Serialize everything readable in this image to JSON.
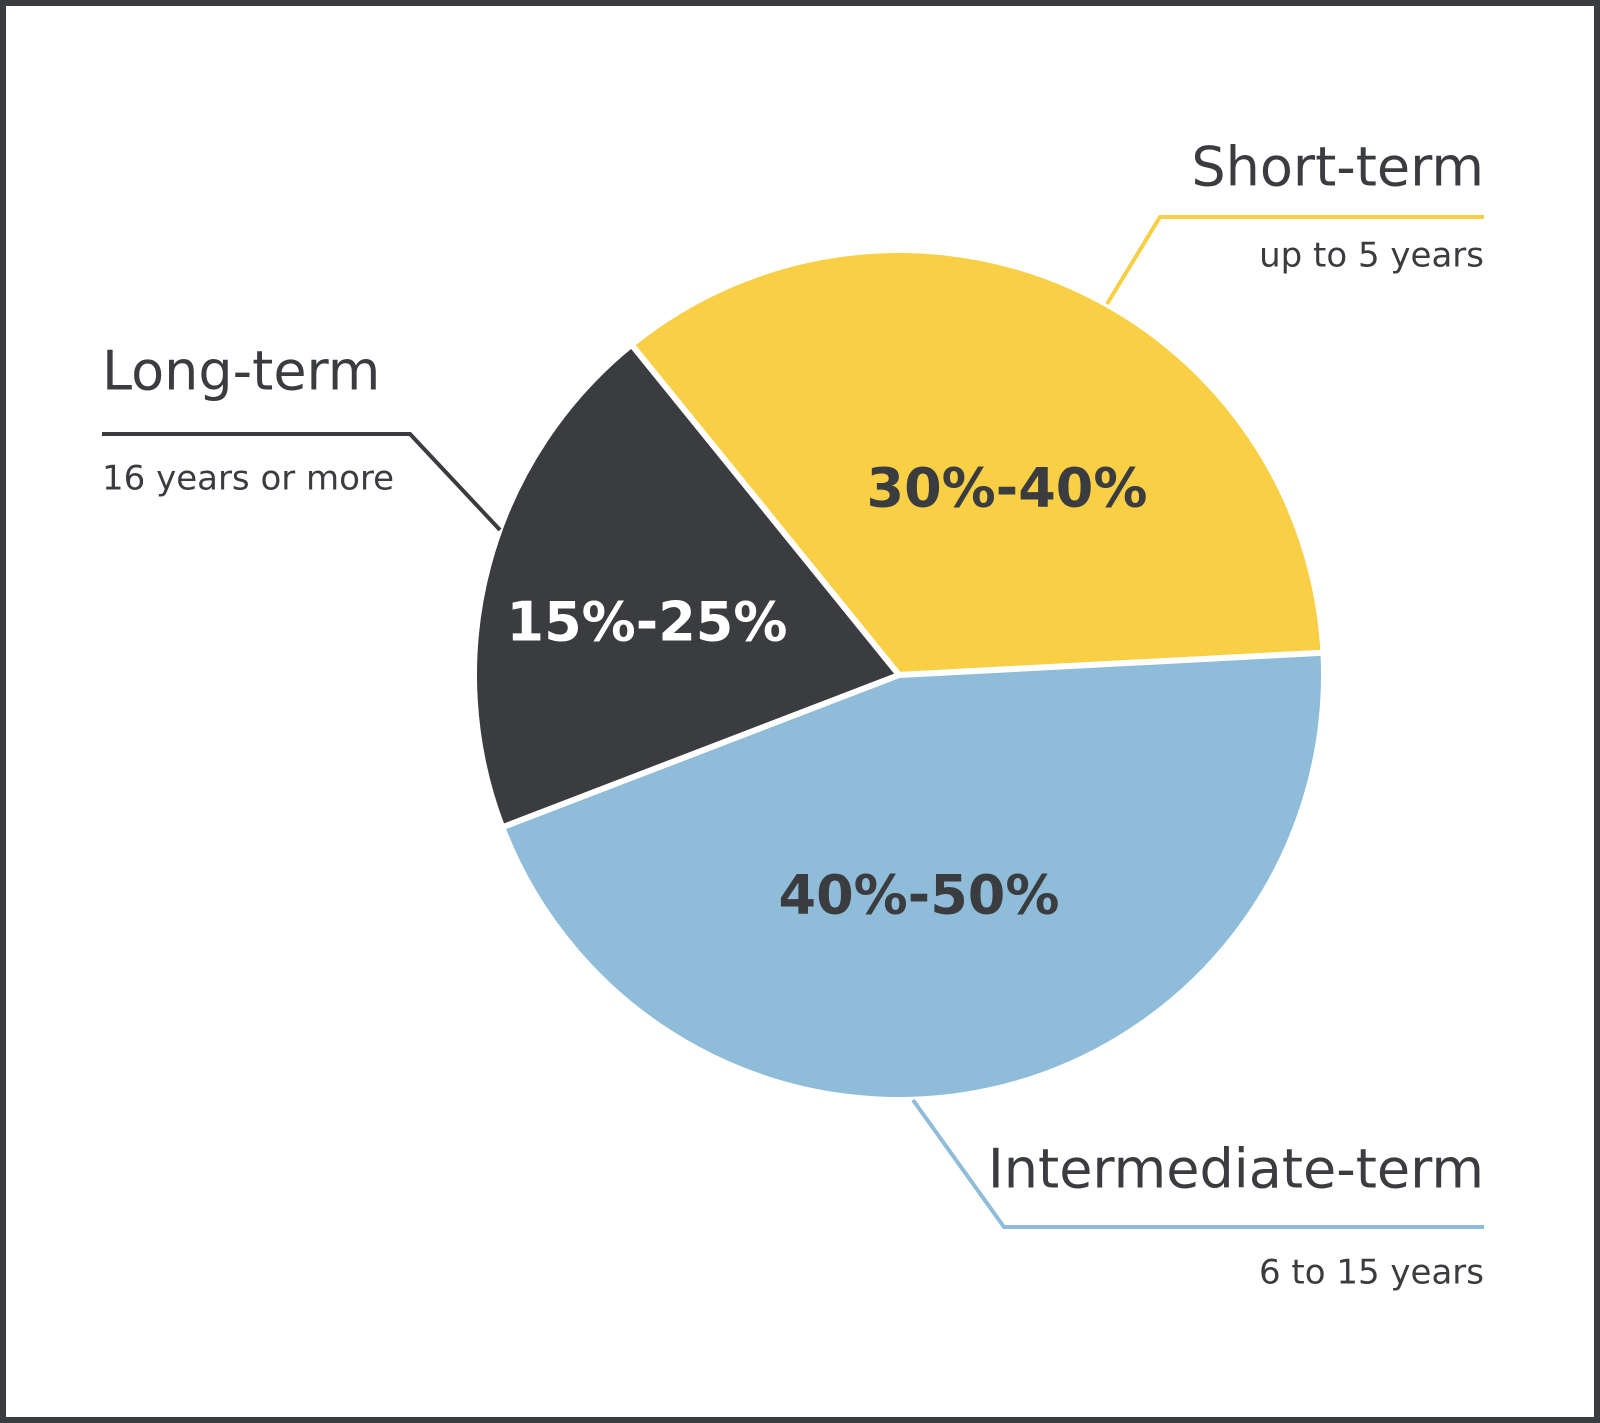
{
  "chart_data": {
    "type": "pie",
    "categories": [
      "Short-term",
      "Intermediate-term",
      "Long-term"
    ],
    "descriptions": [
      "up to 5 years",
      "6 to 15 years",
      "16 years or more"
    ],
    "values": [
      35,
      45,
      20
    ],
    "value_labels": [
      "30%-40%",
      "40%-50%",
      "15%-25%"
    ],
    "colors": [
      "#f8cf45",
      "#8fbcd8",
      "#3a3c3f"
    ]
  }
}
